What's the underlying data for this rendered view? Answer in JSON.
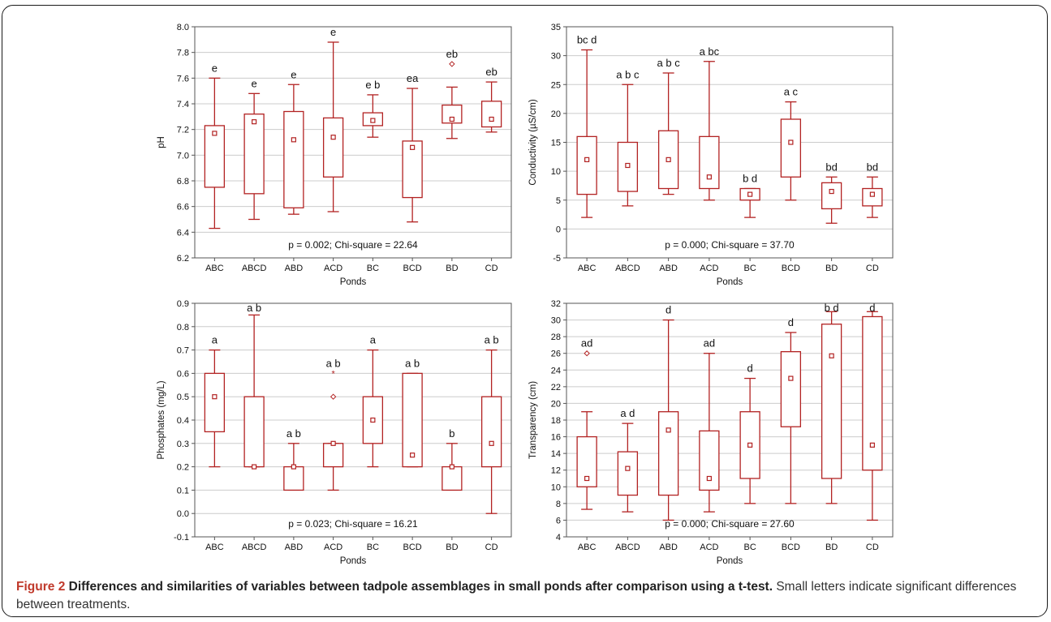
{
  "caption": {
    "label": "Figure",
    "number": "2",
    "title": "Differences and similarities of variables between tadpole assemblages in small ponds after comparison using a t-test.",
    "text": "Small letters indicate significant differences between treatments."
  },
  "colors": {
    "box": "#b22222",
    "grid": "#cccccc",
    "axis": "#555555"
  },
  "chart_data": [
    {
      "type": "box",
      "xlabel": "Ponds",
      "ylabel": "pH",
      "ylim": [
        6.2,
        8.0
      ],
      "yticks": [
        "6.2",
        "6.4",
        "6.6",
        "6.8",
        "7.0",
        "7.2",
        "7.4",
        "7.6",
        "7.8",
        "8.0"
      ],
      "categories": [
        "ABC",
        "ABCD",
        "ABD",
        "ACD",
        "BC",
        "BCD",
        "BD",
        "CD"
      ],
      "annotation": "p = 0.002; Chi-square = 22.64",
      "boxes": [
        {
          "min": 6.43,
          "q1": 6.75,
          "median": 7.17,
          "q3": 7.23,
          "max": 7.6,
          "label": "e"
        },
        {
          "min": 6.5,
          "q1": 6.7,
          "median": 7.26,
          "q3": 7.32,
          "max": 7.48,
          "label": "e"
        },
        {
          "min": 6.54,
          "q1": 6.59,
          "median": 7.12,
          "q3": 7.34,
          "max": 7.55,
          "label": "e"
        },
        {
          "min": 6.56,
          "q1": 6.83,
          "median": 7.14,
          "q3": 7.29,
          "max": 7.88,
          "label": "e"
        },
        {
          "min": 7.14,
          "q1": 7.23,
          "median": 7.27,
          "q3": 7.33,
          "max": 7.47,
          "label": "e b"
        },
        {
          "min": 6.48,
          "q1": 6.67,
          "median": 7.06,
          "q3": 7.11,
          "max": 7.52,
          "label": "ea"
        },
        {
          "min": 7.13,
          "q1": 7.25,
          "median": 7.28,
          "q3": 7.39,
          "max": 7.53,
          "outliers": [
            7.71
          ],
          "label": "eb"
        },
        {
          "min": 7.18,
          "q1": 7.22,
          "median": 7.28,
          "q3": 7.42,
          "max": 7.57,
          "label": "eb"
        }
      ]
    },
    {
      "type": "box",
      "xlabel": "Ponds",
      "ylabel": "Conductivity (µS/cm)",
      "ylim": [
        -5,
        35
      ],
      "yticks": [
        "-5",
        "0",
        "5",
        "10",
        "15",
        "20",
        "25",
        "30",
        "35"
      ],
      "categories": [
        "ABC",
        "ABCD",
        "ABD",
        "ACD",
        "BC",
        "BCD",
        "BD",
        "CD"
      ],
      "annotation": "p = 0.000; Chi-square = 37.70",
      "boxes": [
        {
          "min": 2,
          "q1": 6,
          "median": 12,
          "q3": 16,
          "max": 31,
          "label": "bc d"
        },
        {
          "min": 4,
          "q1": 6.5,
          "median": 11,
          "q3": 15,
          "max": 25,
          "label": "a b c"
        },
        {
          "min": 6,
          "q1": 7,
          "median": 12,
          "q3": 17,
          "max": 27,
          "label": "a b c"
        },
        {
          "min": 5,
          "q1": 7,
          "median": 9,
          "q3": 16,
          "max": 29,
          "label": "a bc"
        },
        {
          "min": 2,
          "q1": 5,
          "median": 6,
          "q3": 7,
          "max": 7,
          "label": "b d"
        },
        {
          "min": 5,
          "q1": 9,
          "median": 15,
          "q3": 19,
          "max": 22,
          "label": "a c"
        },
        {
          "min": 1,
          "q1": 3.5,
          "median": 6.5,
          "q3": 8,
          "max": 9,
          "label": "bd"
        },
        {
          "min": 2,
          "q1": 4,
          "median": 6,
          "q3": 7,
          "max": 9,
          "label": "bd"
        }
      ]
    },
    {
      "type": "box",
      "xlabel": "Ponds",
      "ylabel": "Phosphates (mg/L)",
      "ylim": [
        -0.1,
        0.9
      ],
      "yticks": [
        "-0.1",
        "0.0",
        "0.1",
        "0.2",
        "0.3",
        "0.4",
        "0.5",
        "0.6",
        "0.7",
        "0.8",
        "0.9"
      ],
      "categories": [
        "ABC",
        "ABCD",
        "ABD",
        "ACD",
        "BC",
        "BCD",
        "BD",
        "CD"
      ],
      "annotation": "p = 0.023; Chi-square = 16.21",
      "boxes": [
        {
          "min": 0.2,
          "q1": 0.35,
          "median": 0.5,
          "q3": 0.6,
          "max": 0.7,
          "label": "a"
        },
        {
          "min": 0.2,
          "q1": 0.2,
          "median": 0.2,
          "q3": 0.5,
          "max": 0.85,
          "label": "a b"
        },
        {
          "min": 0.1,
          "q1": 0.1,
          "median": 0.2,
          "q3": 0.2,
          "max": 0.3,
          "label": "a b"
        },
        {
          "min": 0.1,
          "q1": 0.2,
          "median": 0.3,
          "q3": 0.3,
          "max": 0.3,
          "outliers": [
            0.5
          ],
          "extremes": [
            0.6
          ],
          "label": "a b"
        },
        {
          "min": 0.2,
          "q1": 0.3,
          "median": 0.4,
          "q3": 0.5,
          "max": 0.7,
          "label": "a"
        },
        {
          "min": 0.2,
          "q1": 0.2,
          "median": 0.25,
          "q3": 0.6,
          "max": 0.6,
          "label": "a b"
        },
        {
          "min": 0.1,
          "q1": 0.1,
          "median": 0.2,
          "q3": 0.2,
          "max": 0.3,
          "label": "b"
        },
        {
          "min": 0.0,
          "q1": 0.2,
          "median": 0.3,
          "q3": 0.5,
          "max": 0.7,
          "label": "a b"
        }
      ]
    },
    {
      "type": "box",
      "xlabel": "Ponds",
      "ylabel": "Transparency (cm)",
      "ylim": [
        4,
        32
      ],
      "yticks": [
        "4",
        "6",
        "8",
        "10",
        "12",
        "14",
        "16",
        "18",
        "20",
        "22",
        "24",
        "26",
        "28",
        "30",
        "32"
      ],
      "categories": [
        "ABC",
        "ABCD",
        "ABD",
        "ACD",
        "BC",
        "BCD",
        "BD",
        "CD"
      ],
      "annotation": "p = 0.000; Chi-square = 27.60",
      "boxes": [
        {
          "min": 7.3,
          "q1": 10,
          "median": 11,
          "q3": 16,
          "max": 19,
          "outliers": [
            26
          ],
          "label": "ad"
        },
        {
          "min": 7,
          "q1": 9,
          "median": 12.2,
          "q3": 14.2,
          "max": 17.6,
          "label": "a d"
        },
        {
          "min": 6,
          "q1": 9,
          "median": 16.8,
          "q3": 19,
          "max": 30,
          "label": "d"
        },
        {
          "min": 7,
          "q1": 9.6,
          "median": 11,
          "q3": 16.7,
          "max": 26,
          "label": "ad"
        },
        {
          "min": 8,
          "q1": 11,
          "median": 15,
          "q3": 19,
          "max": 23,
          "label": "d"
        },
        {
          "min": 8,
          "q1": 17.2,
          "median": 23,
          "q3": 26.2,
          "max": 28.5,
          "label": "d"
        },
        {
          "min": 8,
          "q1": 11,
          "median": 25.7,
          "q3": 29.5,
          "max": 31,
          "label": "b d"
        },
        {
          "min": 6,
          "q1": 12,
          "median": 15,
          "q3": 30.4,
          "max": 31,
          "label": "d"
        }
      ]
    }
  ]
}
